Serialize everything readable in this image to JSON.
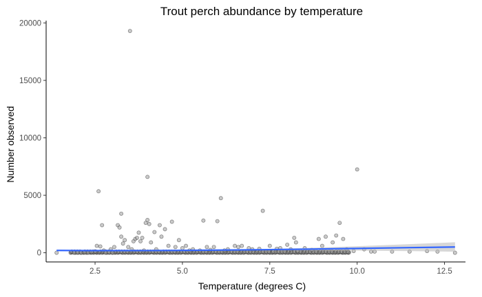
{
  "chart_data": {
    "type": "scatter",
    "title": "Trout perch abundance by temperature",
    "xlabel": "Temperature (degrees C)",
    "ylabel": "Number observed",
    "xlim": [
      1.1,
      13.1
    ],
    "ylim": [
      -800,
      20200
    ],
    "x_ticks": [
      2.5,
      5.0,
      7.5,
      10.0,
      12.5
    ],
    "x_tick_labels": [
      "2.5",
      "5.0",
      "7.5",
      "10.0",
      "12.5"
    ],
    "y_ticks": [
      0,
      5000,
      10000,
      15000,
      20000
    ],
    "y_tick_labels": [
      "0",
      "5000",
      "10000",
      "15000",
      "20000"
    ],
    "grid": false,
    "legend": "none",
    "point_color": "#9e9e9e",
    "smooth_color": "#3366ff",
    "band_color": "#bdbdbd",
    "points": [
      [
        1.4,
        0
      ],
      [
        1.9,
        0
      ],
      [
        2.0,
        15
      ],
      [
        2.1,
        0
      ],
      [
        2.2,
        40
      ],
      [
        2.3,
        0
      ],
      [
        2.4,
        80
      ],
      [
        2.5,
        120
      ],
      [
        2.55,
        600
      ],
      [
        2.6,
        5350
      ],
      [
        2.65,
        550
      ],
      [
        2.7,
        2400
      ],
      [
        2.75,
        200
      ],
      [
        2.8,
        0
      ],
      [
        2.9,
        40
      ],
      [
        2.95,
        300
      ],
      [
        3.0,
        0
      ],
      [
        3.05,
        500
      ],
      [
        3.15,
        2400
      ],
      [
        3.2,
        2200
      ],
      [
        3.25,
        3400
      ],
      [
        3.25,
        1400
      ],
      [
        3.3,
        800
      ],
      [
        3.35,
        1100
      ],
      [
        3.45,
        500
      ],
      [
        3.5,
        19300
      ],
      [
        3.55,
        300
      ],
      [
        3.6,
        1000
      ],
      [
        3.65,
        1200
      ],
      [
        3.7,
        1300
      ],
      [
        3.75,
        1750
      ],
      [
        3.8,
        1000
      ],
      [
        3.85,
        1300
      ],
      [
        3.9,
        200
      ],
      [
        3.95,
        2600
      ],
      [
        4.0,
        6600
      ],
      [
        4.0,
        2850
      ],
      [
        4.05,
        2500
      ],
      [
        4.1,
        900
      ],
      [
        4.2,
        1800
      ],
      [
        4.25,
        300
      ],
      [
        4.35,
        2400
      ],
      [
        4.4,
        1400
      ],
      [
        4.5,
        2050
      ],
      [
        4.6,
        600
      ],
      [
        4.7,
        2700
      ],
      [
        4.8,
        500
      ],
      [
        4.9,
        1100
      ],
      [
        5.0,
        400
      ],
      [
        5.1,
        600
      ],
      [
        5.2,
        200
      ],
      [
        5.3,
        300
      ],
      [
        5.5,
        200
      ],
      [
        5.6,
        2800
      ],
      [
        5.7,
        500
      ],
      [
        5.8,
        250
      ],
      [
        5.9,
        500
      ],
      [
        6.0,
        2750
      ],
      [
        6.1,
        4750
      ],
      [
        6.2,
        200
      ],
      [
        6.3,
        300
      ],
      [
        6.5,
        600
      ],
      [
        6.6,
        500
      ],
      [
        6.7,
        600
      ],
      [
        6.9,
        400
      ],
      [
        7.0,
        300
      ],
      [
        7.2,
        350
      ],
      [
        7.3,
        3650
      ],
      [
        7.5,
        600
      ],
      [
        7.6,
        100
      ],
      [
        7.7,
        350
      ],
      [
        7.8,
        400
      ],
      [
        8.0,
        700
      ],
      [
        8.1,
        300
      ],
      [
        8.2,
        1300
      ],
      [
        8.25,
        900
      ],
      [
        8.3,
        150
      ],
      [
        8.5,
        400
      ],
      [
        8.7,
        250
      ],
      [
        8.9,
        1200
      ],
      [
        9.0,
        600
      ],
      [
        9.1,
        1400
      ],
      [
        9.3,
        900
      ],
      [
        9.4,
        1500
      ],
      [
        9.5,
        2600
      ],
      [
        9.6,
        1200
      ],
      [
        9.7,
        300
      ],
      [
        9.9,
        150
      ],
      [
        10.0,
        7250
      ],
      [
        10.2,
        300
      ],
      [
        10.4,
        100
      ],
      [
        10.5,
        100
      ],
      [
        11.0,
        100
      ],
      [
        11.5,
        100
      ],
      [
        12.0,
        150
      ],
      [
        12.3,
        100
      ],
      [
        12.8,
        0
      ]
    ],
    "dense_points": {
      "x_start": 1.8,
      "x_end": 9.8,
      "x_step": 0.09,
      "y_values": [
        0,
        20,
        45,
        80,
        110
      ]
    },
    "smooth": {
      "x": [
        1.4,
        2.5,
        4.0,
        5.5,
        7.0,
        8.5,
        10.0,
        11.5,
        12.8
      ],
      "y": [
        200,
        185,
        190,
        215,
        255,
        310,
        375,
        445,
        500
      ],
      "lower": [
        140,
        150,
        165,
        185,
        205,
        210,
        185,
        140,
        90
      ],
      "upper": [
        260,
        220,
        215,
        245,
        305,
        410,
        565,
        750,
        910
      ]
    }
  }
}
